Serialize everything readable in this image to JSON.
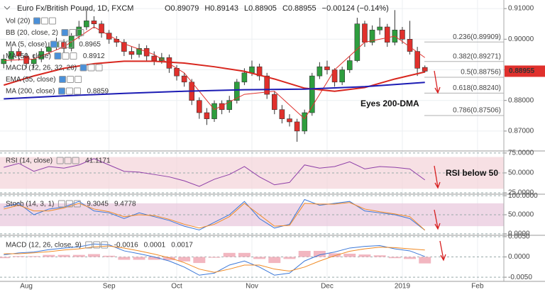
{
  "header": {
    "title": "Euro Fx/British Pound, 1D, FXCM",
    "ohlc": [
      "O0.89079",
      "H0.89143",
      "L0.88905",
      "C0.88955",
      "−0.00124 (−0.14%)"
    ],
    "indicator_labels": [
      "Vol (20)",
      "BB (20, close, 2)",
      "MACD (12, 26, 32, 26)",
      "EMA (55, close)"
    ]
  },
  "chart_data": [
    {
      "type": "candlestick",
      "categories": [
        null,
        null,
        null,
        "Aug",
        null,
        null,
        null,
        null,
        null,
        null,
        null,
        null,
        null,
        null,
        "Sep",
        null,
        null,
        null,
        null,
        null,
        null,
        null,
        null,
        "Oct",
        null,
        null,
        null,
        null,
        null,
        null,
        null,
        null,
        null,
        "Nov",
        null,
        null,
        null,
        null,
        null,
        null,
        null,
        null,
        null,
        "Dec",
        null,
        null,
        null,
        null,
        null,
        null,
        null,
        null,
        null,
        "2019",
        null,
        null,
        null,
        null,
        null,
        null,
        null,
        null,
        null,
        "Feb",
        null,
        null,
        null
      ],
      "open": [
        0.892,
        0.8935,
        0.896,
        0.8945,
        0.892,
        0.8935,
        0.896,
        0.8975,
        0.899,
        0.897,
        0.901,
        0.904,
        0.906,
        0.905,
        0.902,
        0.9,
        0.899,
        0.896,
        0.895,
        0.897,
        0.8945,
        0.893,
        0.894,
        0.8905,
        0.888,
        0.886,
        0.88,
        0.876,
        0.874,
        0.879,
        0.877,
        0.88,
        0.886,
        0.889,
        0.891,
        0.888,
        0.882,
        0.877,
        0.874,
        0.873,
        0.87,
        0.876,
        0.888,
        0.891,
        0.89,
        0.886,
        0.89,
        0.893,
        0.905,
        0.899,
        0.903,
        0.904,
        0.899,
        0.903,
        0.9,
        0.896,
        0.89079,
        null,
        null,
        null,
        null,
        null,
        null,
        null,
        null,
        null,
        null
      ],
      "high": [
        0.895,
        0.8975,
        0.897,
        0.8955,
        0.895,
        0.897,
        0.899,
        0.9005,
        0.9,
        0.902,
        0.906,
        0.91,
        0.9075,
        0.906,
        0.903,
        0.901,
        0.9,
        0.8975,
        0.8985,
        0.898,
        0.896,
        0.8955,
        0.895,
        0.8915,
        0.889,
        0.887,
        0.881,
        0.8775,
        0.88,
        0.88,
        0.8815,
        0.887,
        0.8905,
        0.893,
        0.892,
        0.889,
        0.883,
        0.8785,
        0.8755,
        0.874,
        0.877,
        0.889,
        0.8925,
        0.893,
        0.8905,
        0.891,
        0.8945,
        0.907,
        0.906,
        0.9045,
        0.907,
        0.905,
        0.9095,
        0.904,
        0.906,
        0.8975,
        0.89143,
        null,
        null,
        null,
        null,
        null,
        null,
        null,
        null,
        null,
        null
      ],
      "low": [
        0.8905,
        0.8925,
        0.893,
        0.8905,
        0.8905,
        0.8925,
        0.895,
        0.8965,
        0.8955,
        0.896,
        0.9,
        0.903,
        0.9035,
        0.9005,
        0.8985,
        0.8975,
        0.8945,
        0.8935,
        0.894,
        0.893,
        0.8915,
        0.892,
        0.889,
        0.8865,
        0.8845,
        0.8785,
        0.874,
        0.872,
        0.873,
        0.8755,
        0.876,
        0.879,
        0.885,
        0.888,
        0.8865,
        0.8805,
        0.8755,
        0.8725,
        0.8715,
        0.8665,
        0.869,
        0.875,
        0.887,
        0.8885,
        0.8845,
        0.885,
        0.889,
        0.8925,
        0.8975,
        0.898,
        0.9015,
        0.8975,
        0.898,
        0.8985,
        0.895,
        0.888,
        0.88905,
        null,
        null,
        null,
        null,
        null,
        null,
        null,
        null,
        null,
        null
      ],
      "close": [
        0.8935,
        0.896,
        0.8945,
        0.892,
        0.8935,
        0.896,
        0.8975,
        0.899,
        0.897,
        0.901,
        0.904,
        0.906,
        0.905,
        0.902,
        0.9,
        0.899,
        0.896,
        0.895,
        0.897,
        0.8945,
        0.893,
        0.894,
        0.8905,
        0.888,
        0.886,
        0.88,
        0.876,
        0.874,
        0.879,
        0.877,
        0.88,
        0.886,
        0.889,
        0.891,
        0.888,
        0.882,
        0.877,
        0.874,
        0.873,
        0.87,
        0.876,
        0.888,
        0.891,
        0.89,
        0.886,
        0.89,
        0.893,
        0.905,
        0.899,
        0.903,
        0.904,
        0.899,
        0.903,
        0.9,
        0.896,
        0.8905,
        0.88955,
        null,
        null,
        null,
        null,
        null,
        null,
        null,
        null,
        null,
        null
      ],
      "up_color": "#2e9e3e",
      "down_color": "#e0302c",
      "ylim": [
        0.8635,
        0.9128
      ],
      "yticks": [
        {
          "value": 0.91,
          "label": "0.91000"
        },
        {
          "value": 0.9,
          "label": "0.90000"
        },
        {
          "value": 0.89,
          "label": "0.89000"
        },
        {
          "value": 0.88,
          "label": "0.88000"
        },
        {
          "value": 0.87,
          "label": "0.87000"
        }
      ],
      "grid": true,
      "series": [
        {
          "name": "MA (5, close)",
          "legend_value": "0.8965",
          "color": "#e0302c",
          "width": 1,
          "x": [
            0,
            4,
            8,
            12,
            16,
            20,
            24,
            28,
            32,
            36,
            40,
            44,
            48,
            52,
            56
          ],
          "values": [
            0.893,
            0.8935,
            0.8975,
            0.904,
            0.8985,
            0.895,
            0.889,
            0.877,
            0.882,
            0.883,
            0.874,
            0.89,
            0.899,
            0.901,
            0.894
          ]
        },
        {
          "name": "MA (50, close)",
          "legend_value": "0.8912",
          "color": "#d8261e",
          "width": 2,
          "x": [
            0,
            4,
            8,
            12,
            16,
            20,
            24,
            28,
            32,
            36,
            40,
            44,
            48,
            52,
            56
          ],
          "values": [
            0.885,
            0.888,
            0.8905,
            0.892,
            0.8928,
            0.8928,
            0.8922,
            0.891,
            0.8895,
            0.887,
            0.884,
            0.883,
            0.8842,
            0.887,
            0.8893
          ]
        },
        {
          "name": "MA (200, close)",
          "legend_value": "0.8859",
          "color": "#1c1cb4",
          "width": 2,
          "x": [
            0,
            8,
            16,
            24,
            32,
            40,
            48,
            56
          ],
          "values": [
            0.8805,
            0.8815,
            0.8823,
            0.883,
            0.8835,
            0.8837,
            0.8845,
            0.8859
          ]
        }
      ],
      "fib_levels": [
        {
          "value": 0.89909,
          "label": "0.236(0.89909)"
        },
        {
          "value": 0.89271,
          "label": "0.382(0.89271)"
        },
        {
          "value": 0.88756,
          "label": "0.5(0.88756)"
        },
        {
          "value": 0.8824,
          "label": "0.618(0.88240)"
        },
        {
          "value": 0.87506,
          "label": "0.786(0.87506)"
        }
      ],
      "annotations": [
        "Eyes 200-DMA"
      ]
    },
    {
      "type": "line",
      "title": "RSI (14, close)",
      "ylim": [
        23.2,
        77.6
      ],
      "yticks": [
        {
          "value": 75,
          "label": "75.0000"
        },
        {
          "value": 50,
          "label": "50.0000"
        },
        {
          "value": 25,
          "label": "25.0000"
        }
      ],
      "band": [
        30,
        70
      ],
      "band_color": "#f3d3d8",
      "series": [
        {
          "name": "RSI",
          "color": "#8e3fa8",
          "x": [
            0,
            2,
            4,
            6,
            8,
            10,
            12,
            14,
            16,
            18,
            20,
            22,
            24,
            26,
            28,
            30,
            32,
            34,
            36,
            38,
            40,
            42,
            44,
            46,
            48,
            50,
            52,
            54,
            56
          ],
          "values": [
            57,
            62,
            52,
            58,
            56,
            60,
            68,
            60,
            52,
            51,
            48,
            45,
            40,
            33,
            42,
            48,
            58,
            45,
            35,
            38,
            60,
            56,
            58,
            64,
            55,
            58,
            57,
            55,
            41.1171
          ]
        }
      ],
      "annotations": [
        "RSI below 50"
      ]
    },
    {
      "type": "line",
      "title": "Stoch (14, 3, 1)",
      "ylim": [
        -4,
        104
      ],
      "yticks": [
        {
          "value": 100,
          "label": "100.0000"
        },
        {
          "value": 50,
          "label": "50.0000"
        },
        {
          "value": 0,
          "label": "0.0000"
        }
      ],
      "band": [
        20,
        80
      ],
      "band_color": "#e8c6dc",
      "series": [
        {
          "name": "%K",
          "color": "#3c78d8",
          "x": [
            0,
            2,
            4,
            6,
            8,
            10,
            12,
            14,
            16,
            18,
            20,
            22,
            24,
            26,
            28,
            30,
            32,
            34,
            36,
            38,
            40,
            42,
            44,
            46,
            48,
            50,
            52,
            54,
            56
          ],
          "values": [
            70,
            80,
            50,
            65,
            70,
            85,
            60,
            55,
            40,
            55,
            45,
            35,
            20,
            10,
            30,
            50,
            85,
            40,
            15,
            25,
            90,
            75,
            80,
            85,
            60,
            55,
            50,
            40,
            9.3045
          ]
        },
        {
          "name": "%D",
          "color": "#f08a24",
          "x": [
            0,
            2,
            4,
            6,
            8,
            10,
            12,
            14,
            16,
            18,
            20,
            22,
            24,
            26,
            28,
            30,
            32,
            34,
            36,
            38,
            40,
            42,
            44,
            46,
            48,
            50,
            52,
            54,
            56
          ],
          "values": [
            65,
            75,
            60,
            60,
            68,
            80,
            65,
            58,
            45,
            50,
            48,
            38,
            25,
            15,
            25,
            45,
            80,
            50,
            20,
            22,
            80,
            78,
            78,
            82,
            65,
            58,
            52,
            45,
            9.4778
          ]
        }
      ]
    },
    {
      "type": "macd",
      "title": "MACD (12, 26, close, 9)",
      "ylim": [
        -0.00603,
        0.00534
      ],
      "yticks": [
        {
          "value": 0.005,
          "label": "0.0050"
        },
        {
          "value": 0,
          "label": "0.0000"
        },
        {
          "value": -0.005,
          "label": "-0.0050"
        }
      ],
      "x": [
        0,
        2,
        4,
        6,
        8,
        10,
        12,
        14,
        16,
        18,
        20,
        22,
        24,
        26,
        28,
        30,
        32,
        34,
        36,
        38,
        40,
        42,
        44,
        46,
        48,
        50,
        52,
        54,
        56
      ],
      "histogram": {
        "color": "#f2b6c0",
        "values": [
          -0.0003,
          0.0002,
          0.0002,
          0.0005,
          0.0005,
          0.0005,
          0.0007,
          0.0003,
          -0.0007,
          -0.0007,
          -0.0007,
          -0.0008,
          -0.0011,
          -0.0015,
          -0.0002,
          0.001,
          0.001,
          -0.0005,
          -0.0015,
          -0.0005,
          0.0015,
          0.0015,
          0.0009,
          0.0008,
          0.0006,
          0.0004,
          -0.0003,
          -0.0005,
          -0.0016
        ]
      },
      "series": [
        {
          "name": "MACD",
          "color": "#3c78d8",
          "values": [
            0.0005,
            0.001,
            0.0012,
            0.0018,
            0.0022,
            0.0025,
            0.0032,
            0.003,
            0.0015,
            0.0008,
            0,
            -0.001,
            -0.0025,
            -0.0045,
            -0.004,
            -0.002,
            -0.001,
            -0.0025,
            -0.0045,
            -0.004,
            -0.001,
            0.0005,
            0.0012,
            0.0022,
            0.0026,
            0.0028,
            0.002,
            0.0015,
            0.0001
          ]
        },
        {
          "name": "Signal",
          "color": "#f08a24",
          "values": [
            0.0008,
            0.0008,
            0.001,
            0.0013,
            0.0017,
            0.002,
            0.0025,
            0.0027,
            0.0022,
            0.0015,
            0.0007,
            -0.0002,
            -0.0014,
            -0.003,
            -0.0038,
            -0.003,
            -0.002,
            -0.002,
            -0.003,
            -0.0035,
            -0.0025,
            -0.001,
            0.0003,
            0.0014,
            0.002,
            0.0024,
            0.0023,
            0.002,
            0.0017
          ]
        }
      ]
    }
  ]
}
